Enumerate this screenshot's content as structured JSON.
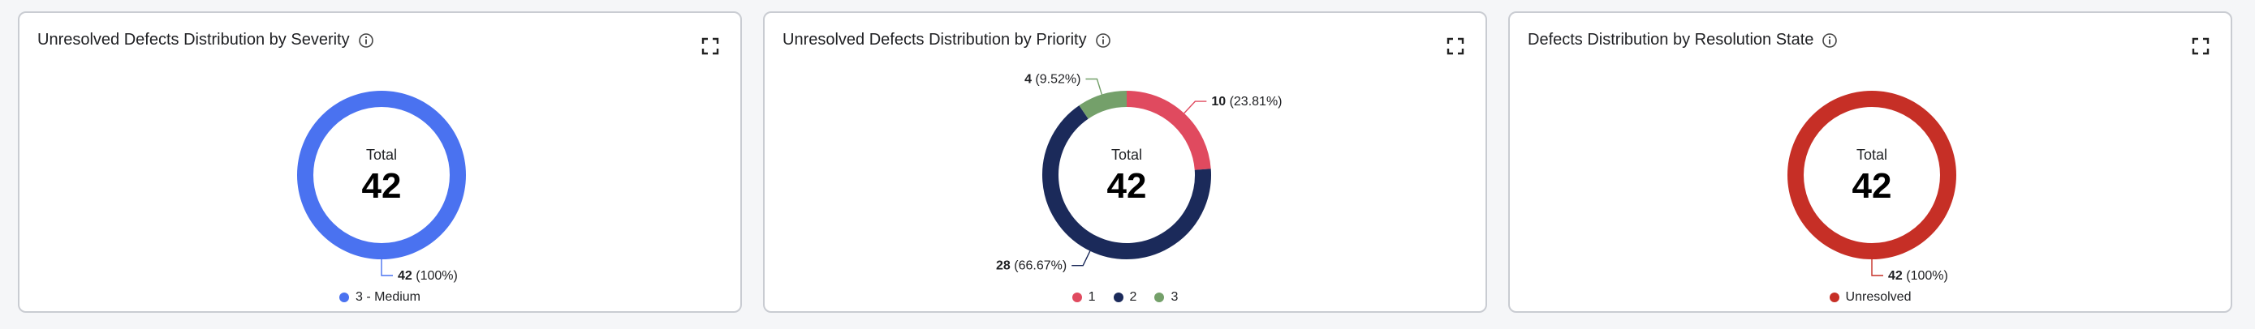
{
  "cards": [
    {
      "title": "Unresolved Defects Distribution by Severity",
      "center_label": "Total",
      "center_value": "42"
    },
    {
      "title": "Unresolved Defects Distribution by Priority",
      "center_label": "Total",
      "center_value": "42"
    },
    {
      "title": "Defects Distribution by Resolution State",
      "center_label": "Total",
      "center_value": "42"
    }
  ],
  "chart_data": [
    {
      "type": "pie",
      "title": "Unresolved Defects Distribution by Severity",
      "total": 42,
      "slices": [
        {
          "name": "3 - Medium",
          "value": 42,
          "value_text": "42",
          "pct_text": "(100%)",
          "color": "#4a72f0"
        }
      ]
    },
    {
      "type": "pie",
      "title": "Unresolved Defects Distribution by Priority",
      "total": 42,
      "slices": [
        {
          "name": "1",
          "value": 10,
          "value_text": "10",
          "pct_text": "(23.81%)",
          "color": "#e04a5f"
        },
        {
          "name": "2",
          "value": 28,
          "value_text": "28",
          "pct_text": "(66.67%)",
          "color": "#1b2a5a"
        },
        {
          "name": "3",
          "value": 4,
          "value_text": "4",
          "pct_text": "(9.52%)",
          "color": "#74a06a"
        }
      ]
    },
    {
      "type": "pie",
      "title": "Defects Distribution by Resolution State",
      "total": 42,
      "slices": [
        {
          "name": "Unresolved",
          "value": 42,
          "value_text": "42",
          "pct_text": "(100%)",
          "color": "#c62f26"
        }
      ]
    }
  ]
}
